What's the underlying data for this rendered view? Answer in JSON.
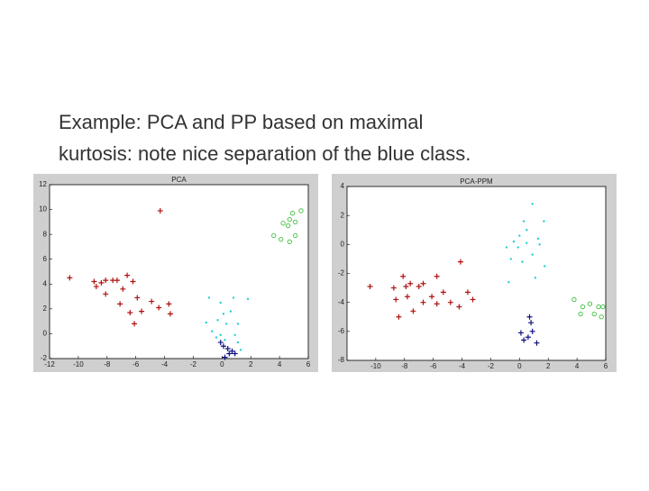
{
  "caption": [
    "Example: PCA and PP based on maximal",
    "kurtosis: note nice separation of the blue class."
  ],
  "chart_data": [
    {
      "type": "scatter",
      "title": "PCA",
      "xlim": [
        -12,
        6
      ],
      "xticks": [
        -12,
        -10,
        -8,
        -6,
        -4,
        -2,
        0,
        2,
        4,
        6
      ],
      "ylim": [
        -2,
        12
      ],
      "yticks": [
        -2,
        0,
        2,
        4,
        6,
        8,
        10,
        12
      ],
      "series": [
        {
          "color": "#b01010",
          "marker": "plus",
          "x": [
            -4.3,
            -10.6,
            -8.9,
            -8.75,
            -8.4,
            -8.1,
            -8.1,
            -7.6,
            -7.3,
            -6.6,
            -6.2,
            -6.9,
            -5.9,
            -7.1,
            -4.9,
            -4.4,
            -3.7,
            -3.6,
            -5.6,
            -6.1,
            -6.4
          ],
          "values": [
            9.9,
            4.5,
            4.2,
            3.8,
            4.1,
            3.2,
            4.3,
            4.3,
            4.3,
            4.7,
            4.2,
            3.6,
            2.9,
            2.4,
            2.6,
            2.1,
            2.4,
            1.6,
            1.8,
            0.8,
            1.7
          ]
        },
        {
          "color": "#20d0d0",
          "marker": "dot",
          "x": [
            -0.9,
            -0.1,
            0.8,
            1.8,
            0.1,
            0.6,
            -0.3,
            0.3,
            1.1,
            -1.1,
            -0.7,
            -0.1,
            0.9,
            1.1,
            0.2,
            1.3,
            -0.4
          ],
          "values": [
            2.9,
            2.5,
            2.9,
            2.8,
            1.6,
            1.8,
            1.1,
            0.8,
            0.8,
            0.9,
            0.2,
            -0.1,
            -0.1,
            -0.7,
            -0.5,
            -1.3,
            -0.3
          ]
        },
        {
          "color": "#40c040",
          "marker": "circle",
          "x": [
            3.6,
            4.25,
            4.7,
            4.9,
            4.6,
            5.1,
            5.5,
            4.1,
            4.7,
            5.1
          ],
          "values": [
            7.9,
            8.9,
            9.2,
            9.7,
            8.7,
            9.0,
            9.9,
            7.6,
            7.4,
            7.9
          ]
        },
        {
          "color": "#101080",
          "marker": "plus",
          "x": [
            0.1,
            0.4,
            0.7,
            0.2,
            0.5,
            0.9,
            -0.1
          ],
          "values": [
            -1.0,
            -1.2,
            -1.4,
            -1.9,
            -1.6,
            -1.6,
            -0.7
          ]
        }
      ]
    },
    {
      "type": "scatter",
      "title": "PCA-PPM",
      "xlim": [
        -12,
        6
      ],
      "xticks": [
        -10,
        -8,
        -6,
        -4,
        -2,
        0,
        2,
        4,
        6
      ],
      "ylim": [
        -8,
        4
      ],
      "yticks": [
        -8,
        -6,
        -4,
        -2,
        0,
        2,
        4
      ],
      "series": [
        {
          "color": "#b01010",
          "marker": "plus",
          "x": [
            -10.4,
            -8.1,
            -8.75,
            -7.9,
            -7.6,
            -5.75,
            -4.1,
            -7.0,
            -6.7,
            -8.6,
            -7.8,
            -6.7,
            -6.1,
            -5.75,
            -5.3,
            -4.8,
            -3.6,
            -3.25,
            -8.4,
            -7.4,
            -4.2
          ],
          "values": [
            -2.9,
            -2.2,
            -3.0,
            -2.9,
            -2.7,
            -2.2,
            -1.2,
            -2.9,
            -2.7,
            -3.8,
            -3.6,
            -4.0,
            -3.6,
            -4.1,
            -3.3,
            -4.0,
            -3.3,
            -3.8,
            -5.0,
            -4.6,
            -4.3
          ]
        },
        {
          "color": "#20d0d0",
          "marker": "dot",
          "x": [
            0.9,
            0.3,
            1.7,
            0.0,
            -0.4,
            -0.9,
            -0.1,
            0.5,
            1.3,
            1.4,
            -0.6,
            0.2,
            0.9,
            1.75,
            1.1,
            -0.75,
            0.5
          ],
          "values": [
            2.8,
            1.6,
            1.6,
            0.6,
            0.2,
            -0.2,
            -0.2,
            0.1,
            0.4,
            0.0,
            -1.0,
            -1.2,
            -0.7,
            -1.5,
            -2.3,
            -2.6,
            1.0
          ]
        },
        {
          "color": "#40c040",
          "marker": "circle",
          "x": [
            3.8,
            4.4,
            4.9,
            5.2,
            5.5,
            4.25,
            5.7,
            5.8
          ],
          "values": [
            -3.8,
            -4.3,
            -4.1,
            -4.8,
            -4.3,
            -4.8,
            -5.0,
            -4.3
          ]
        },
        {
          "color": "#101080",
          "marker": "plus",
          "x": [
            0.1,
            0.6,
            0.8,
            0.9,
            1.2,
            0.3,
            0.7
          ],
          "values": [
            -6.1,
            -6.4,
            -5.4,
            -6.0,
            -6.8,
            -6.6,
            -5.0
          ]
        }
      ]
    }
  ]
}
